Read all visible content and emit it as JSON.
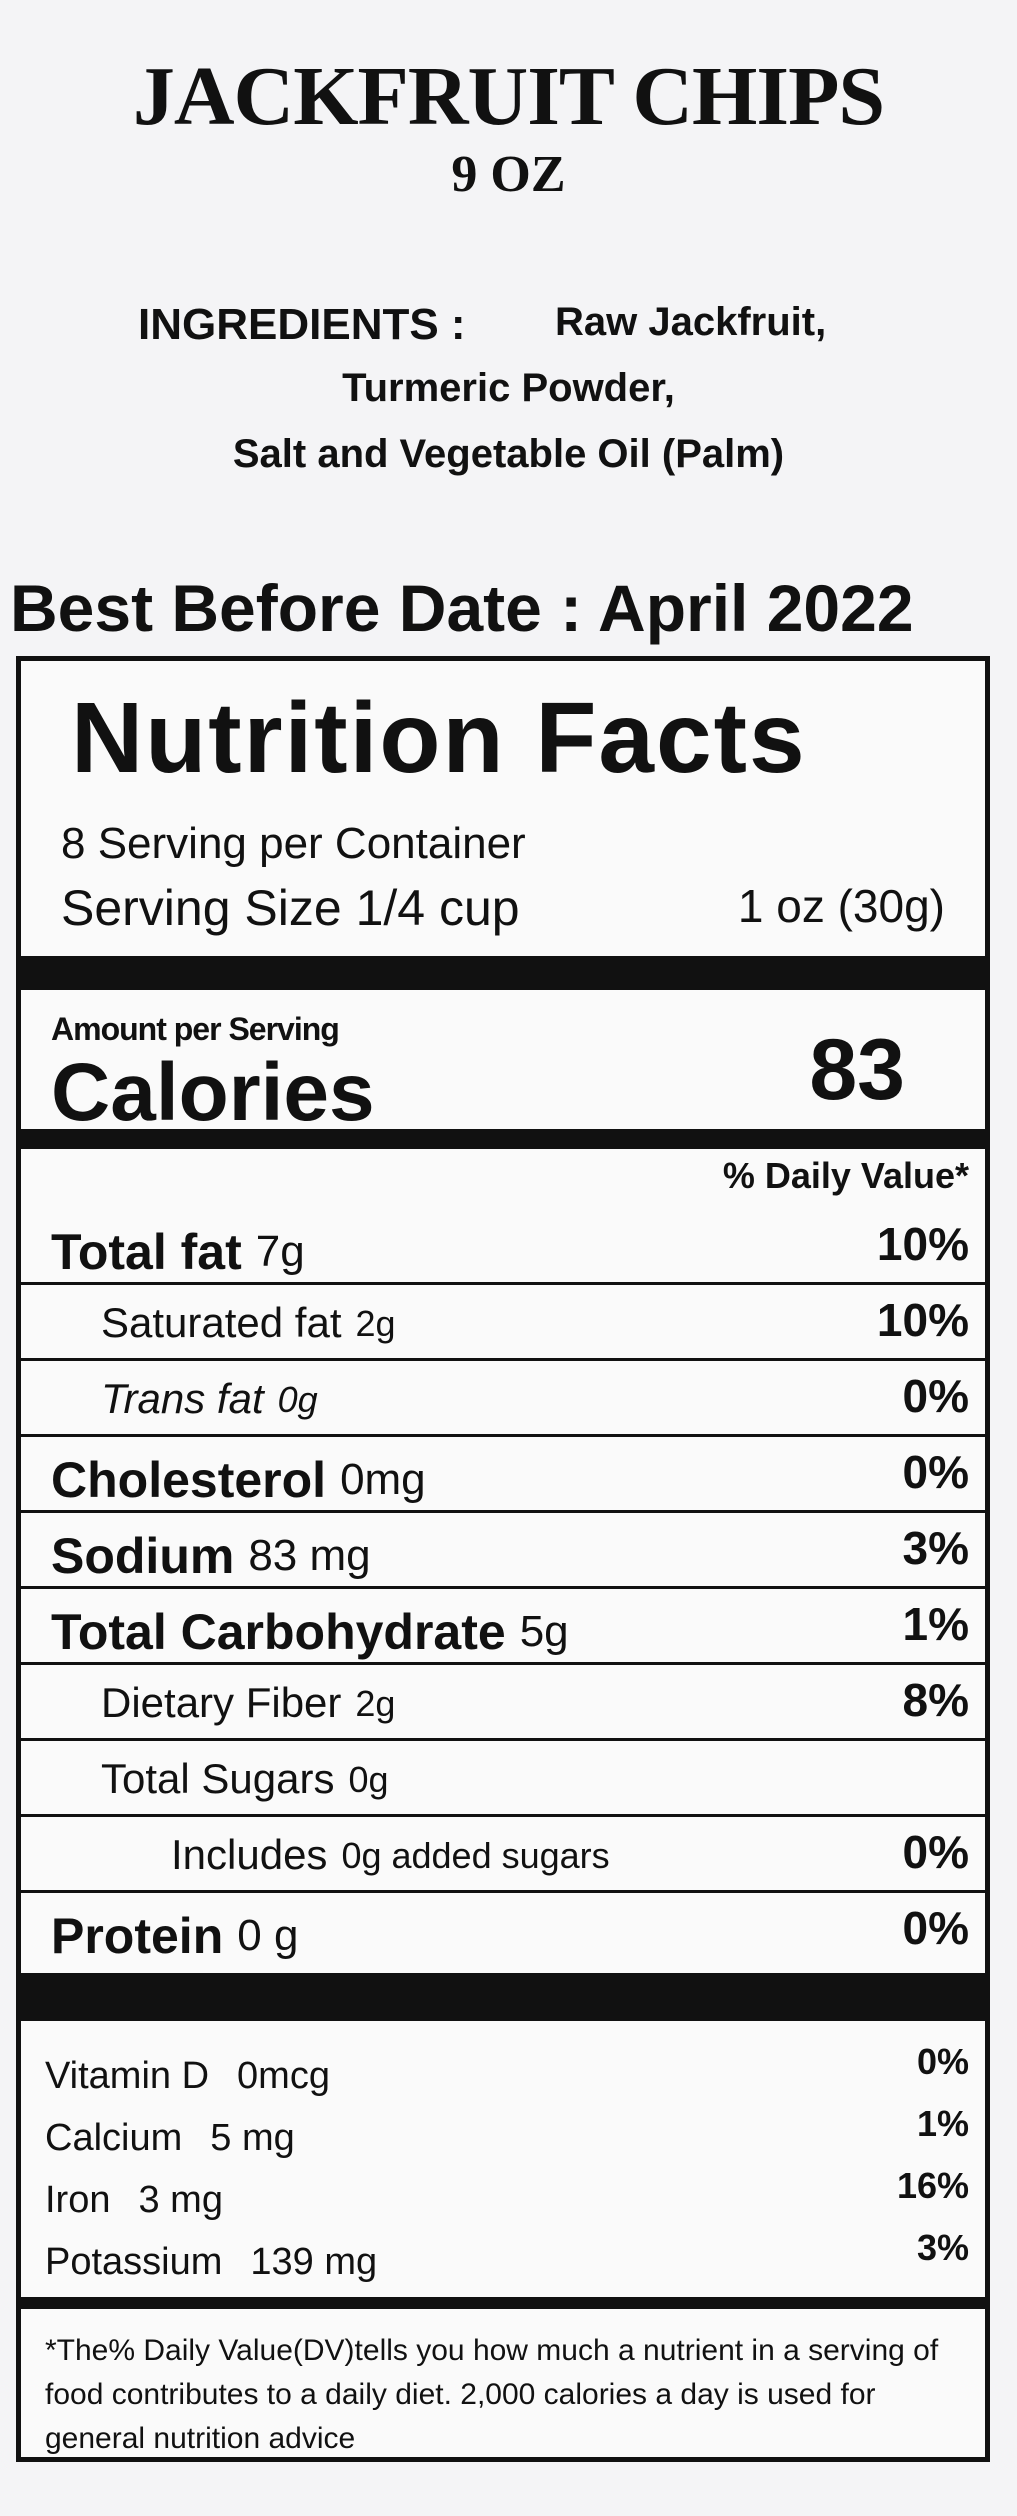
{
  "header": {
    "title": "JACKFRUIT CHIPS",
    "subtitle": "9 OZ"
  },
  "ingredients": {
    "label": "INGREDIENTS :",
    "lines": [
      "Raw Jackfruit,",
      "Turmeric Powder,",
      "Salt and Vegetable Oil (Palm)"
    ]
  },
  "best_before": "Best Before Date : April 2022",
  "nutrition": {
    "title": "Nutrition Facts",
    "servings": "8 Serving per Container",
    "serving_size_label": "Serving Size 1/4 cup",
    "serving_size_value": "1 oz (30g)",
    "amount_per_serving": "Amount per Serving",
    "calories_label": "Calories",
    "calories_value": "83",
    "daily_value_header": "% Daily Value*",
    "rows": [
      {
        "label": "Total fat",
        "amount": "7g",
        "dv": "10%",
        "style": "main"
      },
      {
        "label": "Saturated fat",
        "amount": "2g",
        "dv": "10%",
        "style": "sub"
      },
      {
        "label": "Trans fat",
        "amount": "0g",
        "dv": "0%",
        "style": "italic"
      },
      {
        "label": "Cholesterol",
        "amount": "0mg",
        "dv": "0%",
        "style": "main"
      },
      {
        "label": "Sodium",
        "amount": "83 mg",
        "dv": "3%",
        "style": "main"
      },
      {
        "label": "Total Carbohydrate",
        "amount": "5g",
        "dv": "1%",
        "style": "main"
      },
      {
        "label": "Dietary Fiber",
        "amount": "2g",
        "dv": "8%",
        "style": "sub"
      },
      {
        "label": "Total Sugars",
        "amount": "0g",
        "style": "sub"
      },
      {
        "label": "Includes",
        "amount": "0g added sugars",
        "dv": "0%",
        "style": "subsub"
      },
      {
        "label": "Protein",
        "amount": "0 g",
        "dv": "0%",
        "style": "main"
      }
    ],
    "vitamins": [
      {
        "label": "Vitamin D",
        "amount": "0mcg",
        "dv": "0%"
      },
      {
        "label": "Calcium",
        "amount": "5 mg",
        "dv": "1%"
      },
      {
        "label": "Iron",
        "amount": "3 mg",
        "dv": "16%"
      },
      {
        "label": "Potassium",
        "amount": "139 mg",
        "dv": "3%"
      }
    ],
    "footnote": "*The% Daily Value(DV)tells you how much a nutrient in a serving of food contributes to a daily diet. 2,000 calories a day is used for general nutrition advice"
  }
}
